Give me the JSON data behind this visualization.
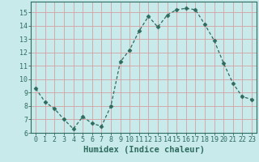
{
  "x": [
    0,
    1,
    2,
    3,
    4,
    5,
    6,
    7,
    8,
    9,
    10,
    11,
    12,
    13,
    14,
    15,
    16,
    17,
    18,
    19,
    20,
    21,
    22,
    23
  ],
  "y": [
    9.3,
    8.3,
    7.8,
    7.0,
    6.3,
    7.2,
    6.7,
    6.5,
    8.0,
    11.3,
    12.2,
    13.6,
    14.7,
    13.9,
    14.8,
    15.2,
    15.3,
    15.2,
    14.1,
    12.9,
    11.2,
    9.7,
    8.7,
    8.5
  ],
  "line_color": "#2e6b5e",
  "marker": "D",
  "marker_size": 2.5,
  "bg_color": "#c8eaea",
  "grid_color": "#d4a0a0",
  "xlabel": "Humidex (Indice chaleur)",
  "ylim": [
    6,
    15.8
  ],
  "xlim": [
    -0.5,
    23.5
  ],
  "yticks": [
    6,
    7,
    8,
    9,
    10,
    11,
    12,
    13,
    14,
    15
  ],
  "xticks": [
    0,
    1,
    2,
    3,
    4,
    5,
    6,
    7,
    8,
    9,
    10,
    11,
    12,
    13,
    14,
    15,
    16,
    17,
    18,
    19,
    20,
    21,
    22,
    23
  ],
  "tick_label_fontsize": 6,
  "xlabel_fontsize": 7.5,
  "label_color": "#2e6b5e"
}
